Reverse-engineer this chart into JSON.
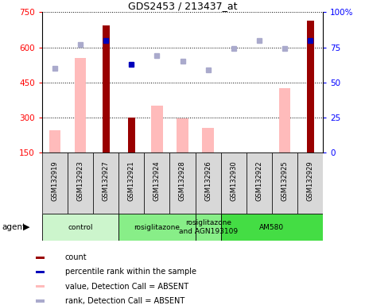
{
  "title": "GDS2453 / 213437_at",
  "samples": [
    "GSM132919",
    "GSM132923",
    "GSM132927",
    "GSM132921",
    "GSM132924",
    "GSM132928",
    "GSM132926",
    "GSM132930",
    "GSM132922",
    "GSM132925",
    "GSM132929"
  ],
  "count_values": [
    null,
    null,
    695,
    300,
    null,
    null,
    null,
    null,
    null,
    null,
    715
  ],
  "count_absent_values": [
    245,
    555,
    null,
    null,
    350,
    295,
    255,
    null,
    null,
    425,
    null
  ],
  "rank_present_pct": [
    null,
    null,
    80,
    63,
    null,
    null,
    null,
    null,
    null,
    null,
    80
  ],
  "rank_absent_pct": [
    60,
    77,
    null,
    null,
    69,
    65,
    59,
    74,
    80,
    74,
    null
  ],
  "ylim_left": [
    150,
    750
  ],
  "ylim_right": [
    0,
    100
  ],
  "yticks_left": [
    150,
    300,
    450,
    600,
    750
  ],
  "yticks_right": [
    0,
    25,
    50,
    75,
    100
  ],
  "groups": [
    {
      "label": "control",
      "start": 0,
      "end": 3,
      "color": "#ccf5cc"
    },
    {
      "label": "rosiglitazone",
      "start": 3,
      "end": 6,
      "color": "#88ee88"
    },
    {
      "label": "rosiglitazone\nand AGN193109",
      "start": 6,
      "end": 7,
      "color": "#88ee88"
    },
    {
      "label": "AM580",
      "start": 7,
      "end": 11,
      "color": "#44dd44"
    }
  ],
  "count_color": "#990000",
  "absent_bar_color": "#ffbbbb",
  "rank_present_color": "#0000bb",
  "rank_absent_color": "#aaaacc",
  "legend_items": [
    {
      "label": "count",
      "color": "#990000"
    },
    {
      "label": "percentile rank within the sample",
      "color": "#0000bb"
    },
    {
      "label": "value, Detection Call = ABSENT",
      "color": "#ffbbbb"
    },
    {
      "label": "rank, Detection Call = ABSENT",
      "color": "#aaaacc"
    }
  ]
}
